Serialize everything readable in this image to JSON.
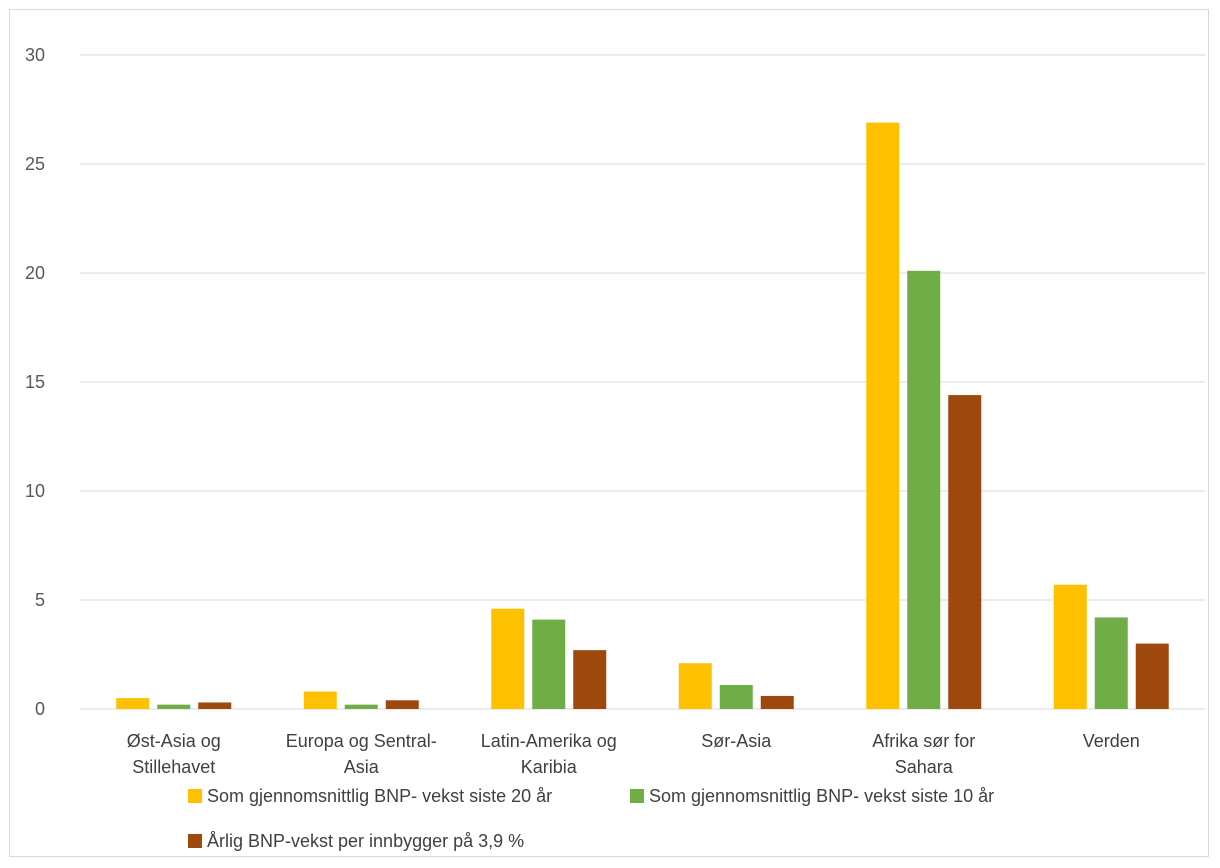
{
  "chart_data": {
    "type": "bar",
    "title": "",
    "xlabel": "",
    "ylabel": "",
    "ylim": [
      0,
      30
    ],
    "yticks": [
      0,
      5,
      10,
      15,
      20,
      25,
      30
    ],
    "grid": true,
    "legend_position": "bottom",
    "categories": [
      [
        "Øst-Asia og",
        "Stillehavet"
      ],
      [
        "Europa og Sentral-",
        "Asia"
      ],
      [
        "Latin-Amerika og",
        "Karibia"
      ],
      [
        "Sør-Asia"
      ],
      [
        "Afrika sør for",
        "Sahara"
      ],
      [
        "Verden"
      ]
    ],
    "series": [
      {
        "name": "Som gjennomsnittlig BNP- vekst siste 20 år",
        "color": "#FFC000",
        "values": [
          0.5,
          0.8,
          4.6,
          2.1,
          26.9,
          5.7
        ]
      },
      {
        "name": "Som gjennomsnittlig BNP- vekst siste 10 år",
        "color": "#70AD47",
        "values": [
          0.2,
          0.2,
          4.1,
          1.1,
          20.1,
          4.2
        ]
      },
      {
        "name": "Årlig  BNP-vekst per innbygger på 3,9 %",
        "color": "#9E480E",
        "values": [
          0.3,
          0.4,
          2.7,
          0.6,
          14.4,
          3.0
        ]
      }
    ]
  }
}
